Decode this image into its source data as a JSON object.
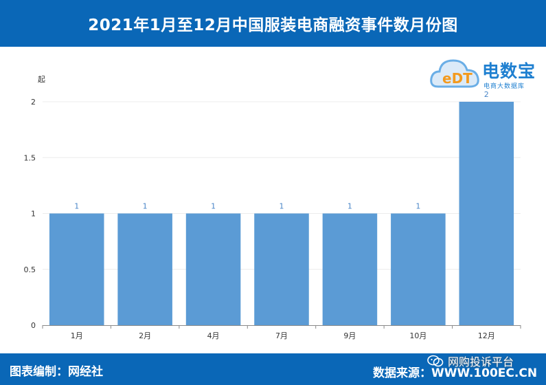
{
  "header": {
    "title": "2021年1月至12月中国服装电商融资事件数月份图"
  },
  "logo": {
    "brand": "电数宝",
    "tagline": "电商大数据库",
    "mark": "eDT"
  },
  "footer": {
    "left": "图表编制：网经社",
    "right": "数据来源：WWW.100EC.CN",
    "wechat": "网购投诉平台"
  },
  "colors": {
    "header": "#0a67b7",
    "bar": "#5b9bd5",
    "label": "#4a86c8"
  },
  "chart_data": {
    "type": "bar",
    "categories": [
      "1月",
      "2月",
      "4月",
      "7月",
      "9月",
      "10月",
      "12月"
    ],
    "values": [
      1,
      1,
      1,
      1,
      1,
      1,
      2
    ],
    "ylabel": "起",
    "ylim": [
      0,
      2
    ],
    "yticks": [
      0,
      0.5,
      1,
      1.5,
      2
    ],
    "ytick_labels": [
      "0",
      "0.5",
      "1",
      "1.5",
      "2"
    ],
    "data_labels": true,
    "grid": true,
    "legend": "none"
  }
}
